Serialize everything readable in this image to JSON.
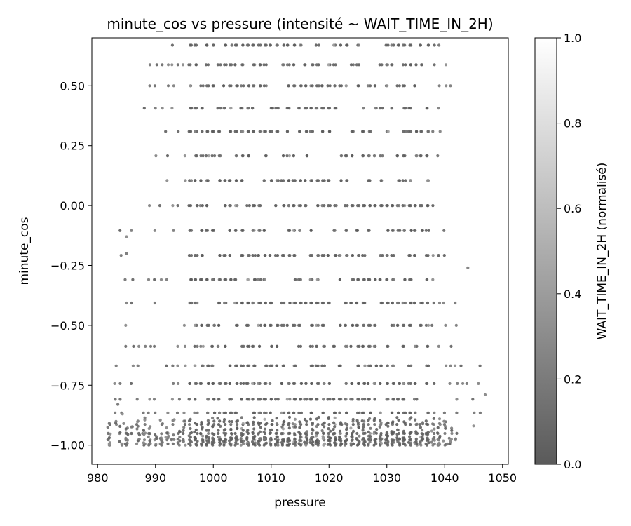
{
  "chart_data": {
    "type": "scatter",
    "title": "minute_cos vs pressure (intensité ~ WAIT_TIME_IN_2H)",
    "xlabel": "pressure",
    "ylabel": "minute_cos",
    "xlim": [
      979,
      1051
    ],
    "ylim": [
      -1.08,
      0.7
    ],
    "x_ticks": [
      980,
      990,
      1000,
      1010,
      1020,
      1030,
      1040,
      1050
    ],
    "x_tick_labels": [
      "980",
      "990",
      "1000",
      "1010",
      "1020",
      "1030",
      "1040",
      "1050"
    ],
    "y_ticks": [
      -1.0,
      -0.75,
      -0.5,
      -0.25,
      0.0,
      0.25,
      0.5
    ],
    "y_tick_labels": [
      "−1.00",
      "−0.75",
      "−0.50",
      "−0.25",
      "0.00",
      "0.25",
      "0.50"
    ],
    "grid": false,
    "colormap": "Greys (reversed)",
    "point_color_range": [
      "#5a5a5a",
      "#ffffff"
    ],
    "point_color_typical": "#1a1a1a",
    "colorbar": {
      "label": "WAIT_TIME_IN_2H (normalisé)",
      "min": 0.0,
      "max": 1.0,
      "ticks": [
        0.0,
        0.2,
        0.4,
        0.6,
        0.8,
        1.0
      ],
      "tick_labels": [
        "0.0",
        "0.2",
        "0.4",
        "0.6",
        "0.8",
        "1.0"
      ]
    },
    "series": [
      {
        "x_range": [
          982,
          1047
        ],
        "y_levels": "discrete cos(2π·minute/60) values from −1.00 to 0.67",
        "dense_x_range": [
          996,
          1038
        ],
        "color_values": "mostly 0.0–0.2 (dark), a few up to ~0.4"
      }
    ]
  }
}
